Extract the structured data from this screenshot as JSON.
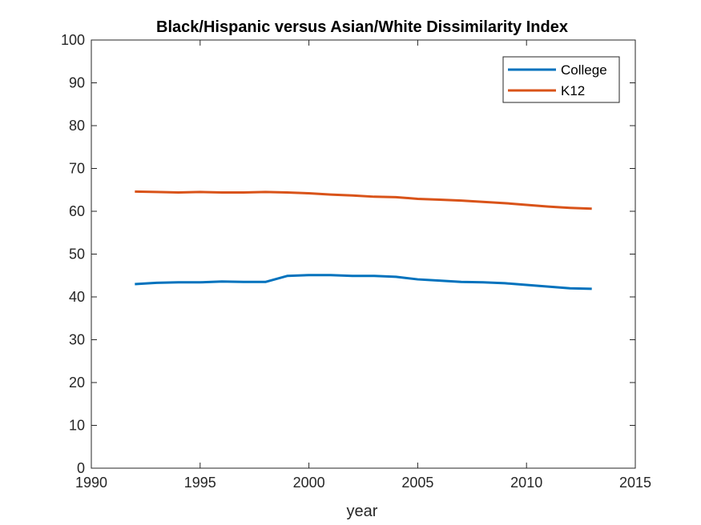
{
  "chart_data": {
    "type": "line",
    "title": "Black/Hispanic versus Asian/White Dissimilarity Index",
    "xlabel": "year",
    "ylabel": "",
    "xlim": [
      1990,
      2015
    ],
    "ylim": [
      0,
      100
    ],
    "xticks": [
      1990,
      1995,
      2000,
      2005,
      2010,
      2015
    ],
    "yticks": [
      0,
      10,
      20,
      30,
      40,
      50,
      60,
      70,
      80,
      90,
      100
    ],
    "grid": false,
    "legend_position": "top-right",
    "x": [
      1992,
      1993,
      1994,
      1995,
      1996,
      1997,
      1998,
      1999,
      2000,
      2001,
      2002,
      2003,
      2004,
      2005,
      2006,
      2007,
      2008,
      2009,
      2010,
      2011,
      2012,
      2013
    ],
    "series": [
      {
        "name": "College",
        "color": "#0072BD",
        "values": [
          43.0,
          43.3,
          43.4,
          43.4,
          43.6,
          43.5,
          43.5,
          44.9,
          45.1,
          45.1,
          44.9,
          44.9,
          44.7,
          44.1,
          43.8,
          43.5,
          43.4,
          43.2,
          42.8,
          42.4,
          42.0,
          41.9
        ]
      },
      {
        "name": "K12",
        "color": "#D95319",
        "values": [
          64.6,
          64.5,
          64.4,
          64.5,
          64.4,
          64.4,
          64.5,
          64.4,
          64.2,
          63.9,
          63.7,
          63.4,
          63.3,
          62.9,
          62.7,
          62.5,
          62.2,
          61.9,
          61.5,
          61.1,
          60.8,
          60.6
        ]
      }
    ]
  }
}
